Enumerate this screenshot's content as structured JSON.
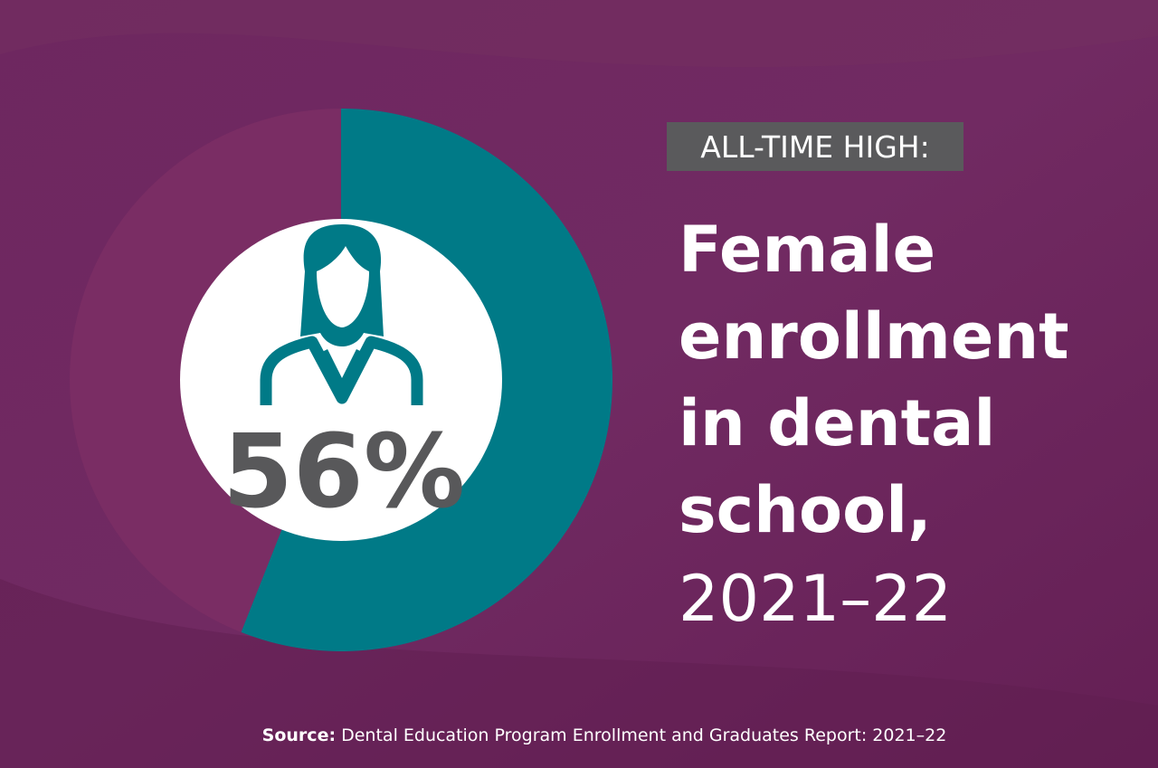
{
  "chart_data": {
    "type": "donut",
    "values": [
      56
    ],
    "value_labels": [
      "56%"
    ],
    "color": "#007a87",
    "badge": "ALL-TIME HIGH:",
    "title_lines": [
      "Female",
      "enrollment",
      "in dental",
      "school,"
    ],
    "subtitle": "2021–22",
    "source_label": "Source:",
    "source": "Dental Education Program Enrollment and Graduates Report: 2021–22"
  }
}
